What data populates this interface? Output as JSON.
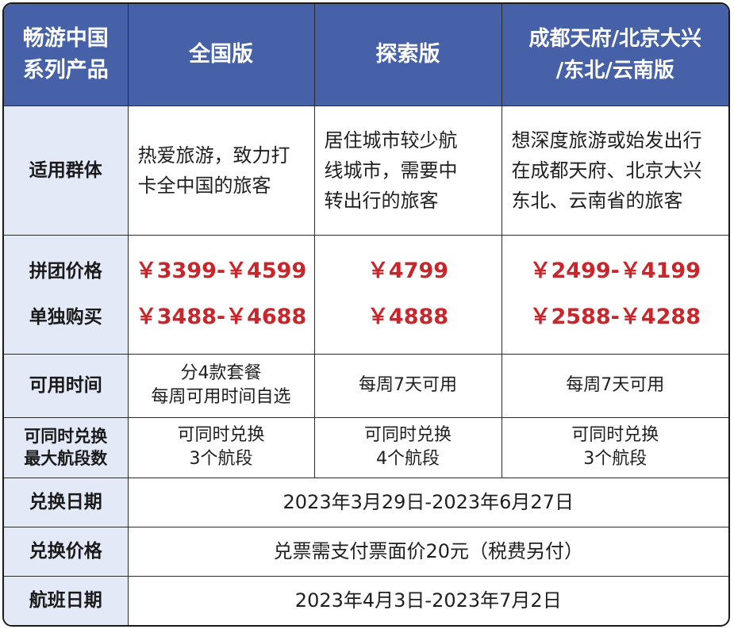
{
  "header": {
    "corner": [
      "畅游中国",
      "系列产品"
    ],
    "col1": "全国版",
    "col2": "探索版",
    "col3": [
      "成都天府/北京大兴",
      "/东北/云南版"
    ]
  },
  "rows": {
    "audience": {
      "label": "适用群体",
      "col1": [
        "热爱旅游，致力打",
        "卡全中国的旅客"
      ],
      "col2": [
        "居住城市较少航",
        "线城市，需要中",
        "转出行的旅客"
      ],
      "col3": [
        "想深度旅游或始发出行",
        "在成都天府、北京大兴",
        "东北、云南省的旅客"
      ]
    },
    "price": {
      "label": [
        "拼团价格",
        "单独购买"
      ],
      "col1": [
        "￥3399-￥4599",
        "￥3488-￥4688"
      ],
      "col2": [
        "￥4799",
        "￥4888"
      ],
      "col3": [
        "￥2499-￥4199",
        "￥2588-￥4288"
      ]
    },
    "time": {
      "label": "可用时间",
      "col1": [
        "分4款套餐",
        "每周可用时间自选"
      ],
      "col2": "每周7天可用",
      "col3": "每周7天可用"
    },
    "segments": {
      "label": [
        "可同时兑换",
        "最大航段数"
      ],
      "col1": [
        "可同时兑换",
        "3个航段"
      ],
      "col2": [
        "可同时兑换",
        "4个航段"
      ],
      "col3": [
        "可同时兑换",
        "3个航段"
      ]
    },
    "redeem_date": {
      "label": "兑换日期",
      "value": "2023年3月29日-2023年6月27日"
    },
    "redeem_price": {
      "label": "兑换价格",
      "value": "兑票需支付票面价20元（税费另付）"
    },
    "flight_date": {
      "label": "航班日期",
      "value": "2023年4月3日-2023年7月2日"
    }
  },
  "colors": {
    "header_bg": "#4661a8",
    "label_bg": "#e4e9f7",
    "price_red": "#c8262b"
  }
}
